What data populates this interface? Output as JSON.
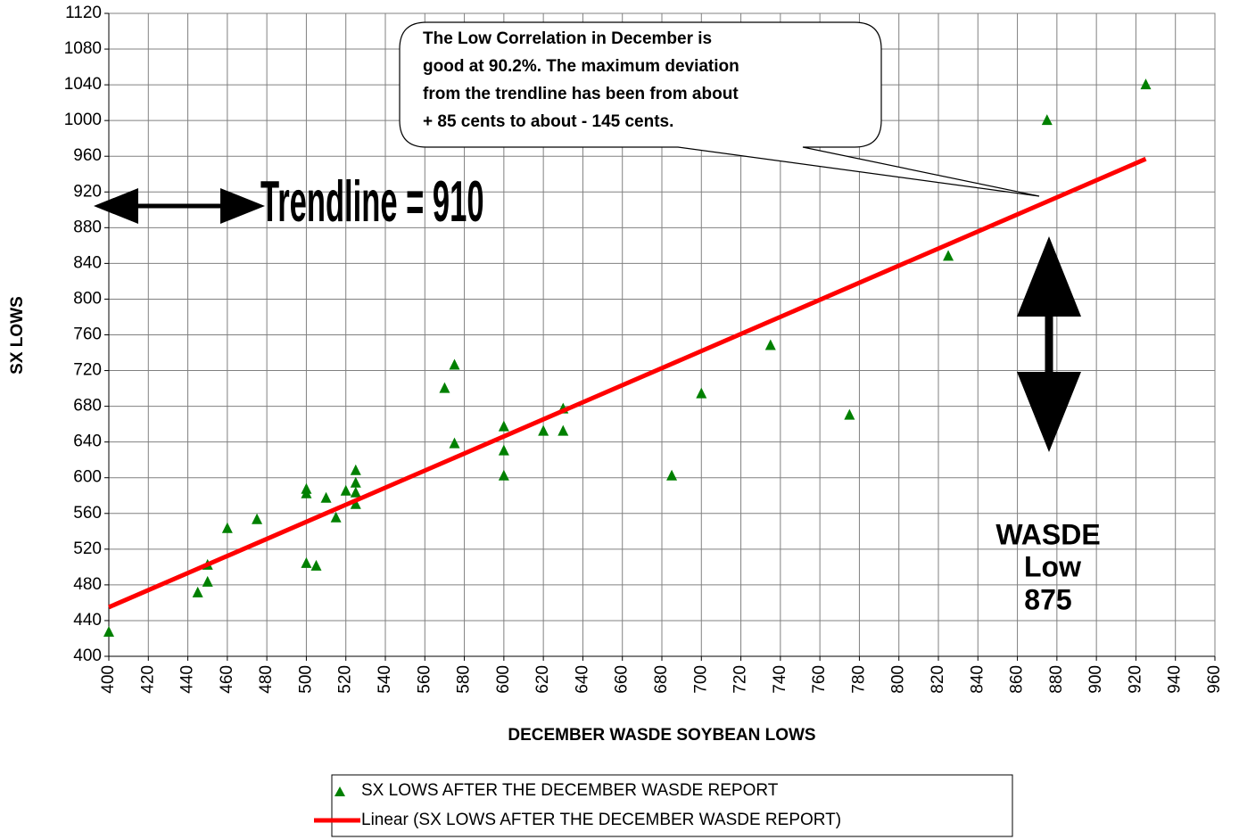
{
  "chart_data": {
    "type": "scatter",
    "x_label": "DECEMBER WASDE SOYBEAN LOWS",
    "y_label": "SX LOWS",
    "xlim": [
      400,
      960
    ],
    "xticks": [
      400,
      420,
      440,
      460,
      480,
      500,
      520,
      540,
      560,
      580,
      600,
      620,
      640,
      660,
      680,
      700,
      720,
      740,
      760,
      780,
      800,
      820,
      840,
      860,
      880,
      900,
      920,
      940,
      960
    ],
    "ylim": [
      400,
      1120
    ],
    "yticks": [
      400,
      440,
      480,
      520,
      560,
      600,
      640,
      680,
      720,
      760,
      800,
      840,
      880,
      920,
      960,
      1000,
      1040,
      1080,
      1120
    ],
    "grid": true,
    "series": [
      {
        "name": "SX LOWS AFTER THE DECEMBER WASDE REPORT",
        "color": "#008000",
        "marker": "triangle",
        "x": [
          400,
          445,
          450,
          450,
          460,
          475,
          500,
          500,
          500,
          505,
          510,
          515,
          520,
          525,
          525,
          525,
          525,
          570,
          575,
          575,
          600,
          600,
          600,
          620,
          630,
          630,
          685,
          700,
          735,
          775,
          825,
          875,
          925
        ],
        "values": [
          428,
          472,
          484,
          503,
          544,
          554,
          588,
          583,
          505,
          502,
          578,
          556,
          586,
          609,
          595,
          584,
          571,
          701,
          727,
          639,
          658,
          631,
          603,
          653,
          653,
          678,
          603,
          695,
          749,
          671,
          849,
          1001,
          1041
        ]
      },
      {
        "name": "Linear (SX LOWS AFTER THE DECEMBER WASDE REPORT)",
        "color": "#ff0000",
        "marker": "line",
        "x": [
          400,
          925
        ],
        "values": [
          455,
          957
        ]
      }
    ],
    "annotations": {
      "callout": [
        "The Low Correlation in December is",
        "good at 90.2%. The maximum deviation",
        "from the trendline has been from about",
        "+ 85 cents to about - 145 cents."
      ],
      "trendline_note": "Trendline = 910",
      "wasde_note": [
        "WASDE",
        "Low",
        "875"
      ]
    }
  }
}
